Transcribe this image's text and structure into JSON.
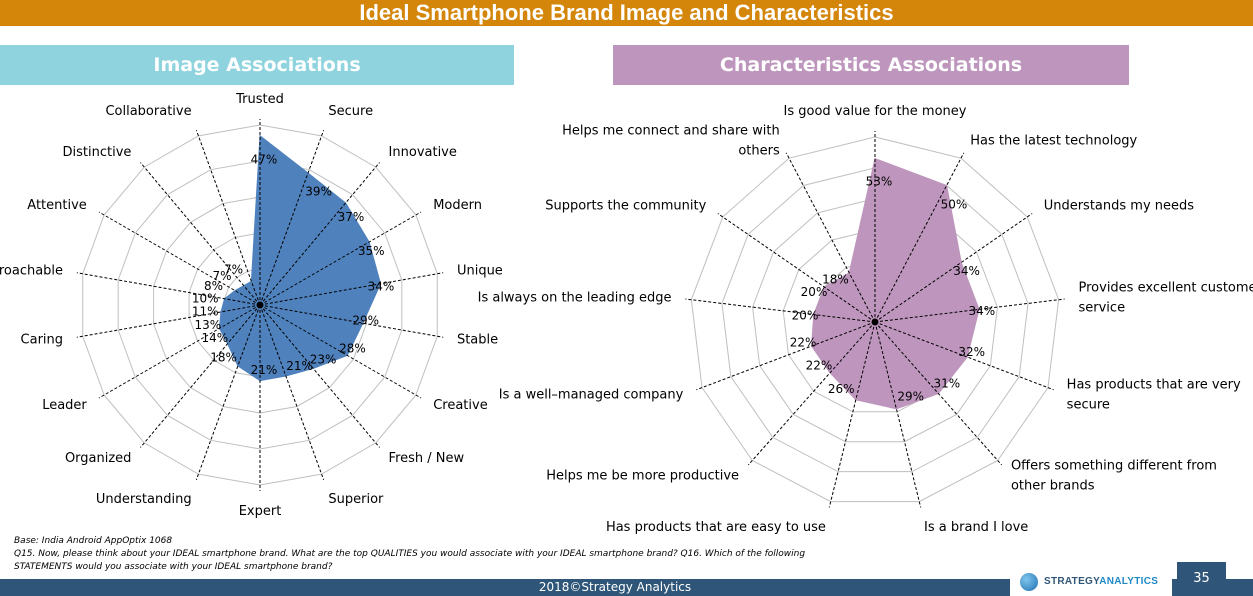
{
  "page": {
    "title": "Ideal Smartphone Brand Image and Characteristics",
    "left_header": "Image Associations",
    "right_header": "Characteristics Associations",
    "footnote": {
      "line1": "Base: India Android AppOptix 1068",
      "line2": "Q15. Now, please think about your IDEAL smartphone brand. What are the top QUALITIES you would associate with your IDEAL smartphone brand? Q16. Which of the following",
      "line3": "STATEMENTS would you associate with your IDEAL smartphone brand?"
    },
    "footer": "2018©Strategy Analytics",
    "logo_prefix": "STRATEGY",
    "logo_suffix": "ANALYTICS",
    "page_number": "35"
  },
  "chart_data": [
    {
      "type": "radar",
      "title": "Image Associations",
      "color": "#4f81bd",
      "max": 50,
      "grid": true,
      "categories": [
        "Trusted",
        "Secure",
        "Innovative",
        "Modern",
        "Unique",
        "Stable",
        "Creative",
        "Fresh / New",
        "Superior",
        "Expert",
        "Understanding",
        "Organized",
        "Leader",
        "Caring",
        "Approachable",
        "Attentive",
        "Distinctive",
        "Collaborative"
      ],
      "values": [
        47,
        39,
        37,
        35,
        34,
        29,
        28,
        23,
        21,
        21,
        18,
        14,
        13,
        11,
        10,
        8,
        7,
        7
      ],
      "value_labels": [
        "47%",
        "39%",
        "37%",
        "35%",
        "34%",
        "29%",
        "28%",
        "23%",
        "21%",
        "21%",
        "18%",
        "14%",
        "13%",
        "11%",
        "10%",
        "8%",
        "7%",
        "7%"
      ]
    },
    {
      "type": "radar",
      "title": "Characteristics Associations",
      "color": "#be96bd",
      "max": 60,
      "grid": true,
      "categories": [
        "Is good value for the money",
        "Has the latest technology",
        "Understands my needs",
        "Provides excellent customer service",
        "Has products that are very secure",
        "Offers something different from other brands",
        "Is a brand I love",
        "Has products that are easy to use",
        "Helps me be more productive",
        "Is a well–managed company",
        "Is always on the leading edge",
        "Supports the community",
        "Helps me connect and share with others"
      ],
      "values": [
        53,
        50,
        34,
        34,
        32,
        31,
        29,
        26,
        22,
        22,
        20,
        20,
        18
      ],
      "value_labels": [
        "53%",
        "50%",
        "34%",
        "34%",
        "32%",
        "31%",
        "29%",
        "26%",
        "22%",
        "22%",
        "20%",
        "20%",
        "18%"
      ]
    }
  ]
}
